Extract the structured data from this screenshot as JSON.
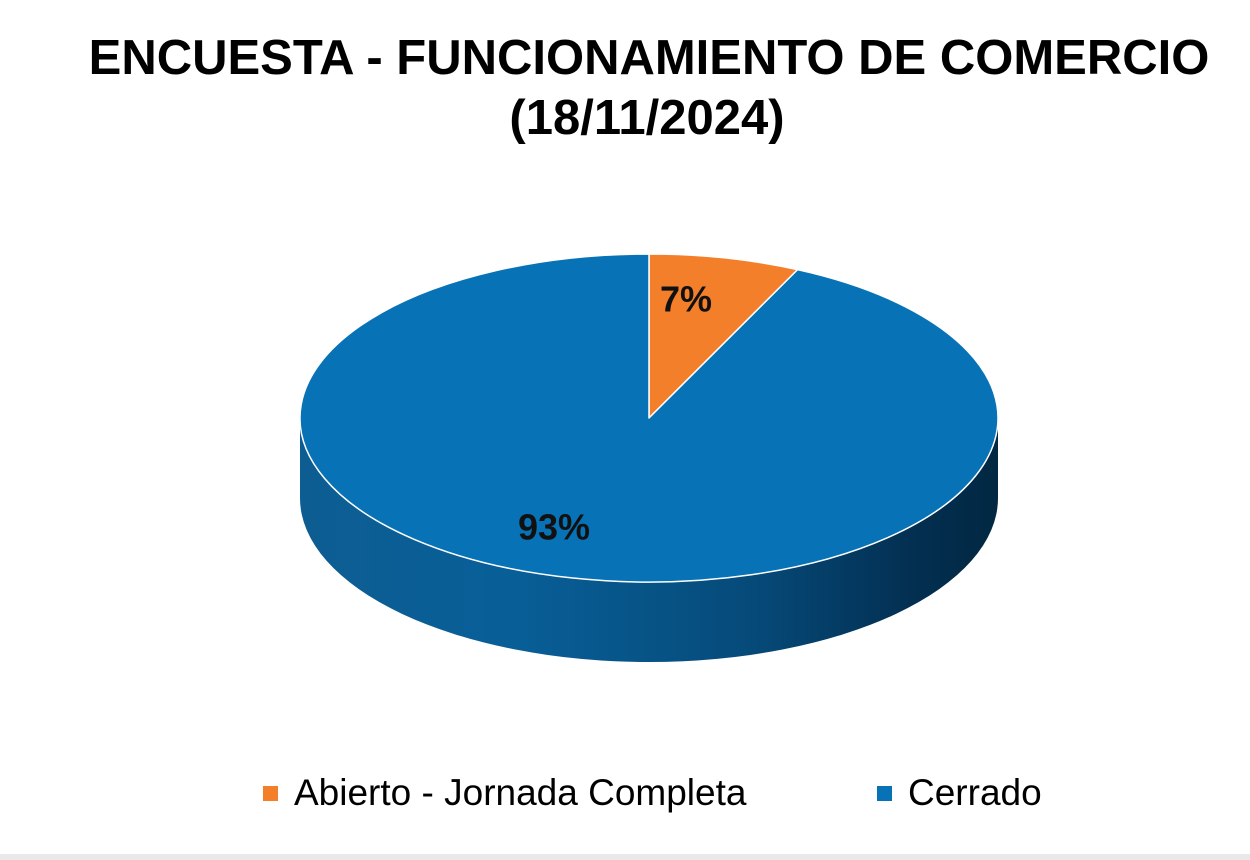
{
  "chart_data": {
    "type": "pie",
    "title_line1": "ENCUESTA - FUNCIONAMIENTO DE COMERCIO",
    "title_line2": "(18/11/2024)",
    "categories": [
      "Abierto - Jornada Completa",
      "Cerrado"
    ],
    "values": [
      7,
      93
    ],
    "data_labels": [
      "7%",
      "93%"
    ],
    "colors": [
      "#f47f2b",
      "#0872b6"
    ],
    "legend_placement": "bottom",
    "style": "3d"
  }
}
